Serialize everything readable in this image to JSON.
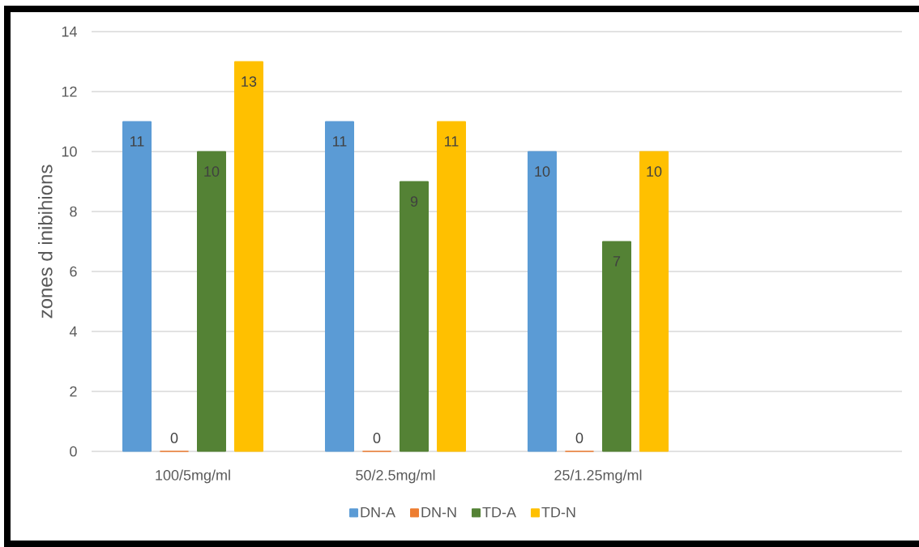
{
  "chart_data": {
    "type": "bar",
    "categories": [
      "100/5mg/ml",
      "50/2.5mg/ml",
      "25/1.25mg/ml",
      null
    ],
    "ylabel": "zones d inibihions",
    "series": [
      {
        "name": "DN-A",
        "color": "#5b9bd5",
        "values": [
          11,
          11,
          10,
          null
        ]
      },
      {
        "name": "DN-N",
        "color": "#ed7d31",
        "values": [
          0,
          0,
          0,
          null
        ]
      },
      {
        "name": "TD-A",
        "color": "#548235",
        "values": [
          10,
          9,
          7,
          null
        ]
      },
      {
        "name": "TD-N",
        "color": "#ffc000",
        "values": [
          13,
          11,
          10,
          null
        ]
      }
    ],
    "ylim": [
      0,
      14
    ],
    "yticks": [
      0,
      2,
      4,
      6,
      8,
      10,
      12,
      14
    ],
    "grid": "y",
    "legend": "bottom",
    "data_labels": true
  }
}
